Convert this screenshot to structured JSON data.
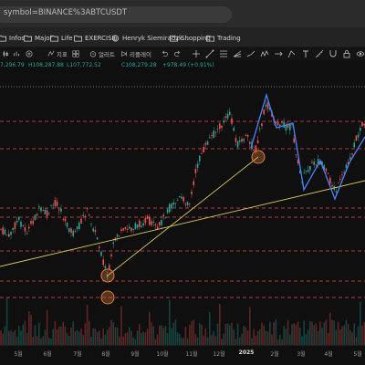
{
  "browser": {
    "url": "symbol=BINANCE%3ABTCUSDT",
    "bookmarks": [
      {
        "label": "Infos",
        "icon": "folder-icon"
      },
      {
        "label": "Major",
        "icon": "folder-icon"
      },
      {
        "label": "Life",
        "icon": "folder-icon"
      },
      {
        "label": "EXERCISE",
        "icon": "folder-icon"
      },
      {
        "label": "Henryk Siemiradzk...",
        "icon": "globe-icon"
      },
      {
        "label": "Shopping",
        "icon": "folder-icon"
      },
      {
        "label": "Trading",
        "icon": "folder-icon"
      }
    ]
  },
  "toolbar": {
    "indicator_label": "지표",
    "alert_label": "얼러트",
    "replay_label": "리플레이"
  },
  "ohlc": {
    "open": "7,296.79",
    "high": "H108,287.88",
    "low": "L107,772.52",
    "close": "C108,279.28",
    "change": "+978.49 (+0.91%)"
  },
  "colors": {
    "up": "#26a69a",
    "down": "#ef5350",
    "level_line": "#e8474f",
    "trendline": "#d9c85a",
    "marker": "#e07b39",
    "pattern": "#4a82ff"
  },
  "chart_data": {
    "type": "candlestick",
    "symbol": "BINANCE:BTCUSDT",
    "x_ticks": [
      "5월",
      "6월",
      "7월",
      "8월",
      "9월",
      "10월",
      "11월",
      "12월",
      "2025",
      "2월",
      "3월",
      "4월",
      "5월"
    ],
    "horizontal_levels_count": 7,
    "trendlines_count": 2,
    "circle_markers_count": 3,
    "grid": false
  }
}
